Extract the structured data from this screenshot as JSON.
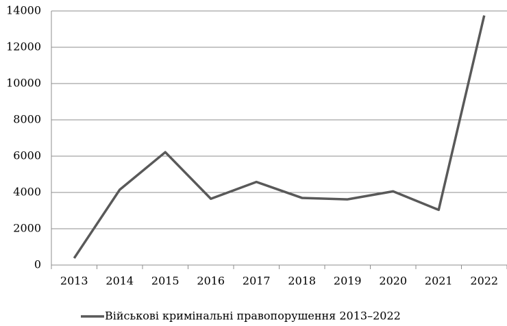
{
  "chart_data": {
    "type": "line",
    "categories": [
      "2013",
      "2014",
      "2015",
      "2016",
      "2017",
      "2018",
      "2019",
      "2020",
      "2021",
      "2022"
    ],
    "series": [
      {
        "name": "Військові кримінальні правопорушення 2013–2022",
        "color": "#595959",
        "values": [
          380,
          4150,
          6220,
          3650,
          4580,
          3700,
          3620,
          4060,
          3040,
          13750
        ]
      }
    ],
    "ylim": [
      0,
      14000
    ],
    "yticks": [
      0,
      2000,
      4000,
      6000,
      8000,
      10000,
      12000,
      14000
    ],
    "grid": true
  }
}
